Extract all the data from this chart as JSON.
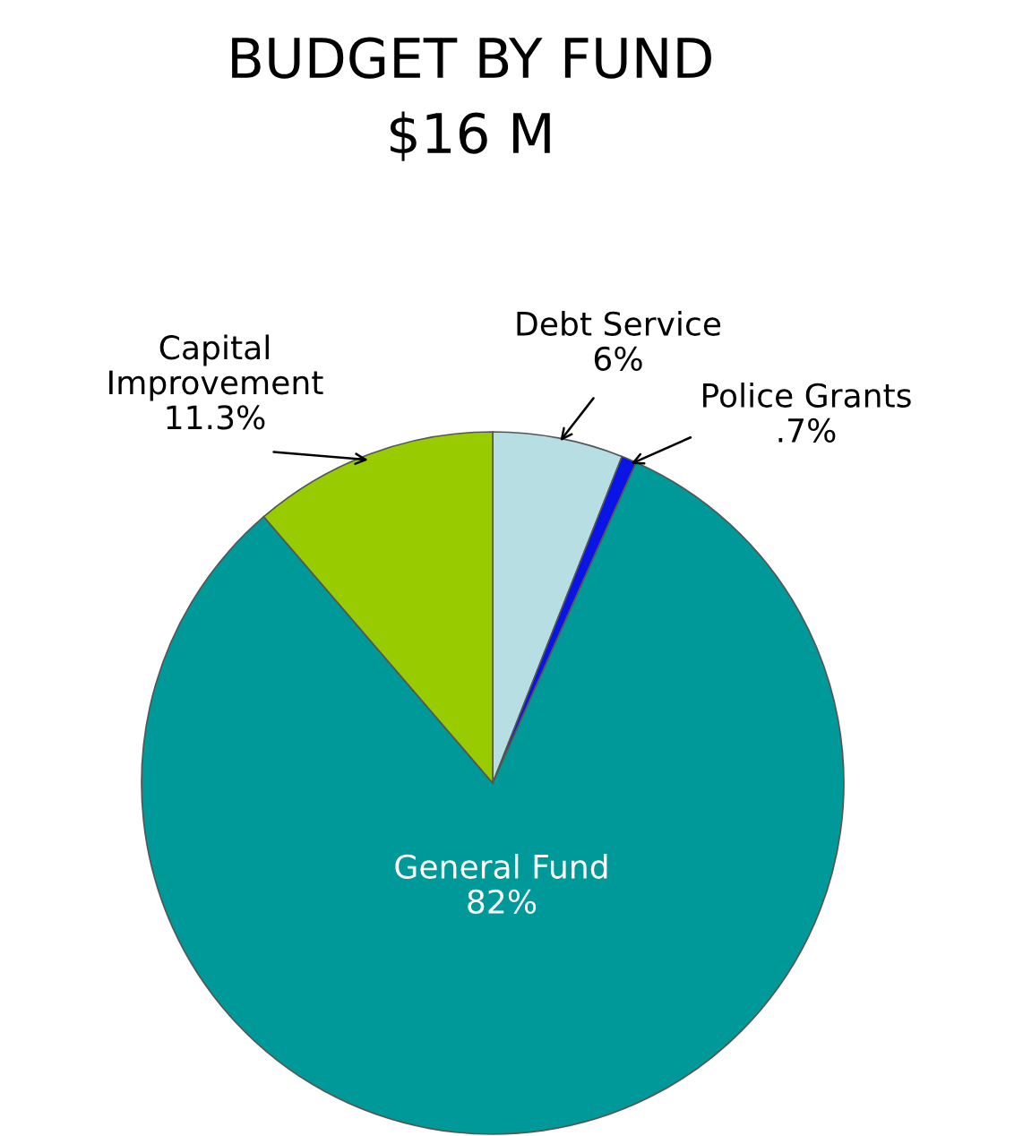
{
  "chart_data": {
    "type": "pie",
    "title": "BUDGET BY FUND",
    "subtitle": "$16 M",
    "categories": [
      "Debt Service",
      "Police Grants",
      "General Fund",
      "Capital Improvement"
    ],
    "values": [
      6,
      0.7,
      82,
      11.3
    ],
    "value_labels": [
      "6%",
      ".7%",
      "82%",
      "11.3%"
    ],
    "colors": [
      "#b7dfe3",
      "#0a14e6",
      "#009999",
      "#99cc00"
    ],
    "legend": false
  }
}
